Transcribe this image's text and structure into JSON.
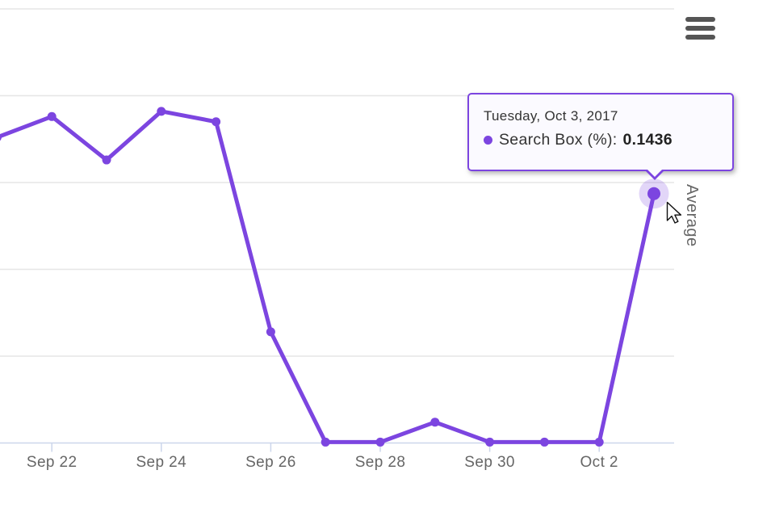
{
  "chart": {
    "y_axis_title": "Average",
    "tooltip": {
      "title": "Tuesday, Oct 3, 2017",
      "series_label": "Search Box (%)",
      "separator": ":",
      "value": "0.1436"
    },
    "menu_icon": "hamburger-context-menu",
    "colors": {
      "series": "#7c45e0",
      "halo": "rgba(124,69,224,0.22)",
      "gridline": "#e6e6e6",
      "axis_line": "#ccd6eb",
      "label_text": "#666666",
      "tooltip_text": "#333333",
      "tooltip_background": "#fbfaff",
      "menu_icon_color": "#555555"
    }
  },
  "chart_data": {
    "type": "line",
    "title": "",
    "xlabel": "",
    "ylabel": "Average",
    "ylim": [
      0,
      0.25
    ],
    "y_gridline_step": 0.05,
    "grid": true,
    "legend": "none",
    "x": [
      "Sep 21",
      "Sep 22",
      "Sep 23",
      "Sep 24",
      "Sep 25",
      "Sep 26",
      "Sep 27",
      "Sep 28",
      "Sep 29",
      "Sep 30",
      "Oct 1",
      "Oct 2",
      "Oct 3"
    ],
    "visible_x_tick_labels": [
      "Sep 22",
      "Sep 24",
      "Sep 26",
      "Sep 28",
      "Sep 30",
      "Oct 2"
    ],
    "series": [
      {
        "name": "Search Box (%)",
        "color": "#7c45e0",
        "values": [
          0.176,
          0.188,
          0.163,
          0.191,
          0.185,
          0.064,
          0.0005,
          0.0005,
          0.012,
          0.0005,
          0.0005,
          0.0005,
          0.1436
        ]
      }
    ],
    "hovered_point": {
      "x": "Oct 3",
      "series": "Search Box (%)",
      "value": 0.1436
    }
  }
}
